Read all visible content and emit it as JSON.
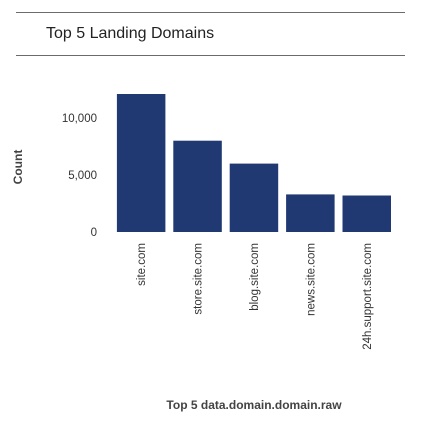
{
  "panel": {
    "title": "Top 5 Landing Domains"
  },
  "chart_data": {
    "type": "bar",
    "title": "Top 5 Landing Domains",
    "xlabel": "Top 5 data.domain.domain.raw",
    "ylabel": "Count",
    "categories": [
      "site.com",
      "store.site.com",
      "blog.site.com",
      "news.site.com",
      "24h.support.site.com"
    ],
    "values": [
      12100,
      8000,
      6000,
      3300,
      3200
    ],
    "ylim": [
      0,
      13500
    ],
    "yticks": [
      0,
      5000,
      10000
    ],
    "ytick_labels": [
      "0",
      "5,000",
      "10,000"
    ],
    "bar_color": "#213972",
    "grid": false
  }
}
